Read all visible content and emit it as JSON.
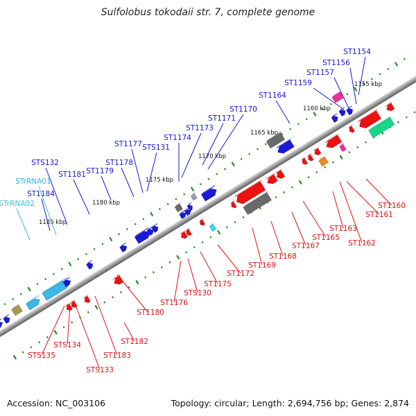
{
  "title": "Sulfolobus tokodaii str. 7, complete genome",
  "footer": {
    "accession": "Accession: NC_003106",
    "summary": "Topology: circular; Length: 2,694,756 bp; Genes: 2,874"
  },
  "colors": {
    "forward_label": "#1515d6",
    "reverse_label": "#e01010",
    "rna_label": "#33bcd8",
    "backbone": "#8a8a8a",
    "tick": "#1e8c1e"
  },
  "scale_labels": [
    "1155 kbp",
    "1160 kbp",
    "1165 kbp",
    "1170 kbp",
    "1175 kbp",
    "1180 kbp",
    "1185 kbp"
  ],
  "forward_genes": [
    "ST1154",
    "ST1156",
    "ST1157",
    "ST1159",
    "ST1164",
    "ST1170",
    "ST1171",
    "ST1173",
    "ST1174",
    "STS131",
    "ST1177",
    "ST1178",
    "ST1179",
    "ST1181",
    "STS132",
    "ST1184"
  ],
  "rna_genes": [
    "STrRNA01",
    "STrRNA02"
  ],
  "reverse_genes": [
    "ST1160",
    "ST1161",
    "ST1162",
    "ST1163",
    "ST1165",
    "ST1167",
    "ST1168",
    "ST1169",
    "ST1172",
    "ST1175",
    "STS130",
    "ST1176",
    "ST1180",
    "ST1182",
    "ST1183",
    "STS133",
    "STS134",
    "STS135"
  ]
}
